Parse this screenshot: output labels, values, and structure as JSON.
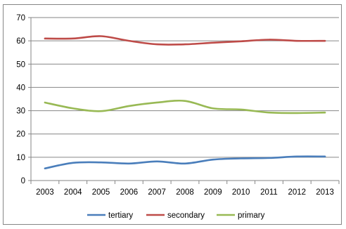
{
  "chart_data": {
    "type": "line",
    "title": "",
    "xlabel": "",
    "ylabel": "",
    "x": [
      "2003",
      "2004",
      "2005",
      "2006",
      "2007",
      "2008",
      "2009",
      "2010",
      "2011",
      "2012",
      "2013"
    ],
    "ylim": [
      0,
      70
    ],
    "yticks": [
      "0",
      "10",
      "20",
      "30",
      "40",
      "50",
      "60",
      "70"
    ],
    "grid": "horizontal",
    "legend_position": "bottom",
    "series": [
      {
        "name": "tertiary",
        "color": "#4a7ebb",
        "values": [
          5.2,
          7.6,
          7.8,
          7.3,
          8.2,
          7.3,
          9.0,
          9.5,
          9.7,
          10.3,
          10.3
        ]
      },
      {
        "name": "secondary",
        "color": "#be4b48",
        "values": [
          61.0,
          61.0,
          62.0,
          60.0,
          58.5,
          58.5,
          59.2,
          59.8,
          60.5,
          60.0,
          60.0
        ]
      },
      {
        "name": "primary",
        "color": "#98b954",
        "values": [
          33.5,
          31.0,
          29.8,
          32.0,
          33.5,
          34.2,
          31.0,
          30.5,
          29.2,
          29.0,
          29.2
        ]
      }
    ]
  }
}
